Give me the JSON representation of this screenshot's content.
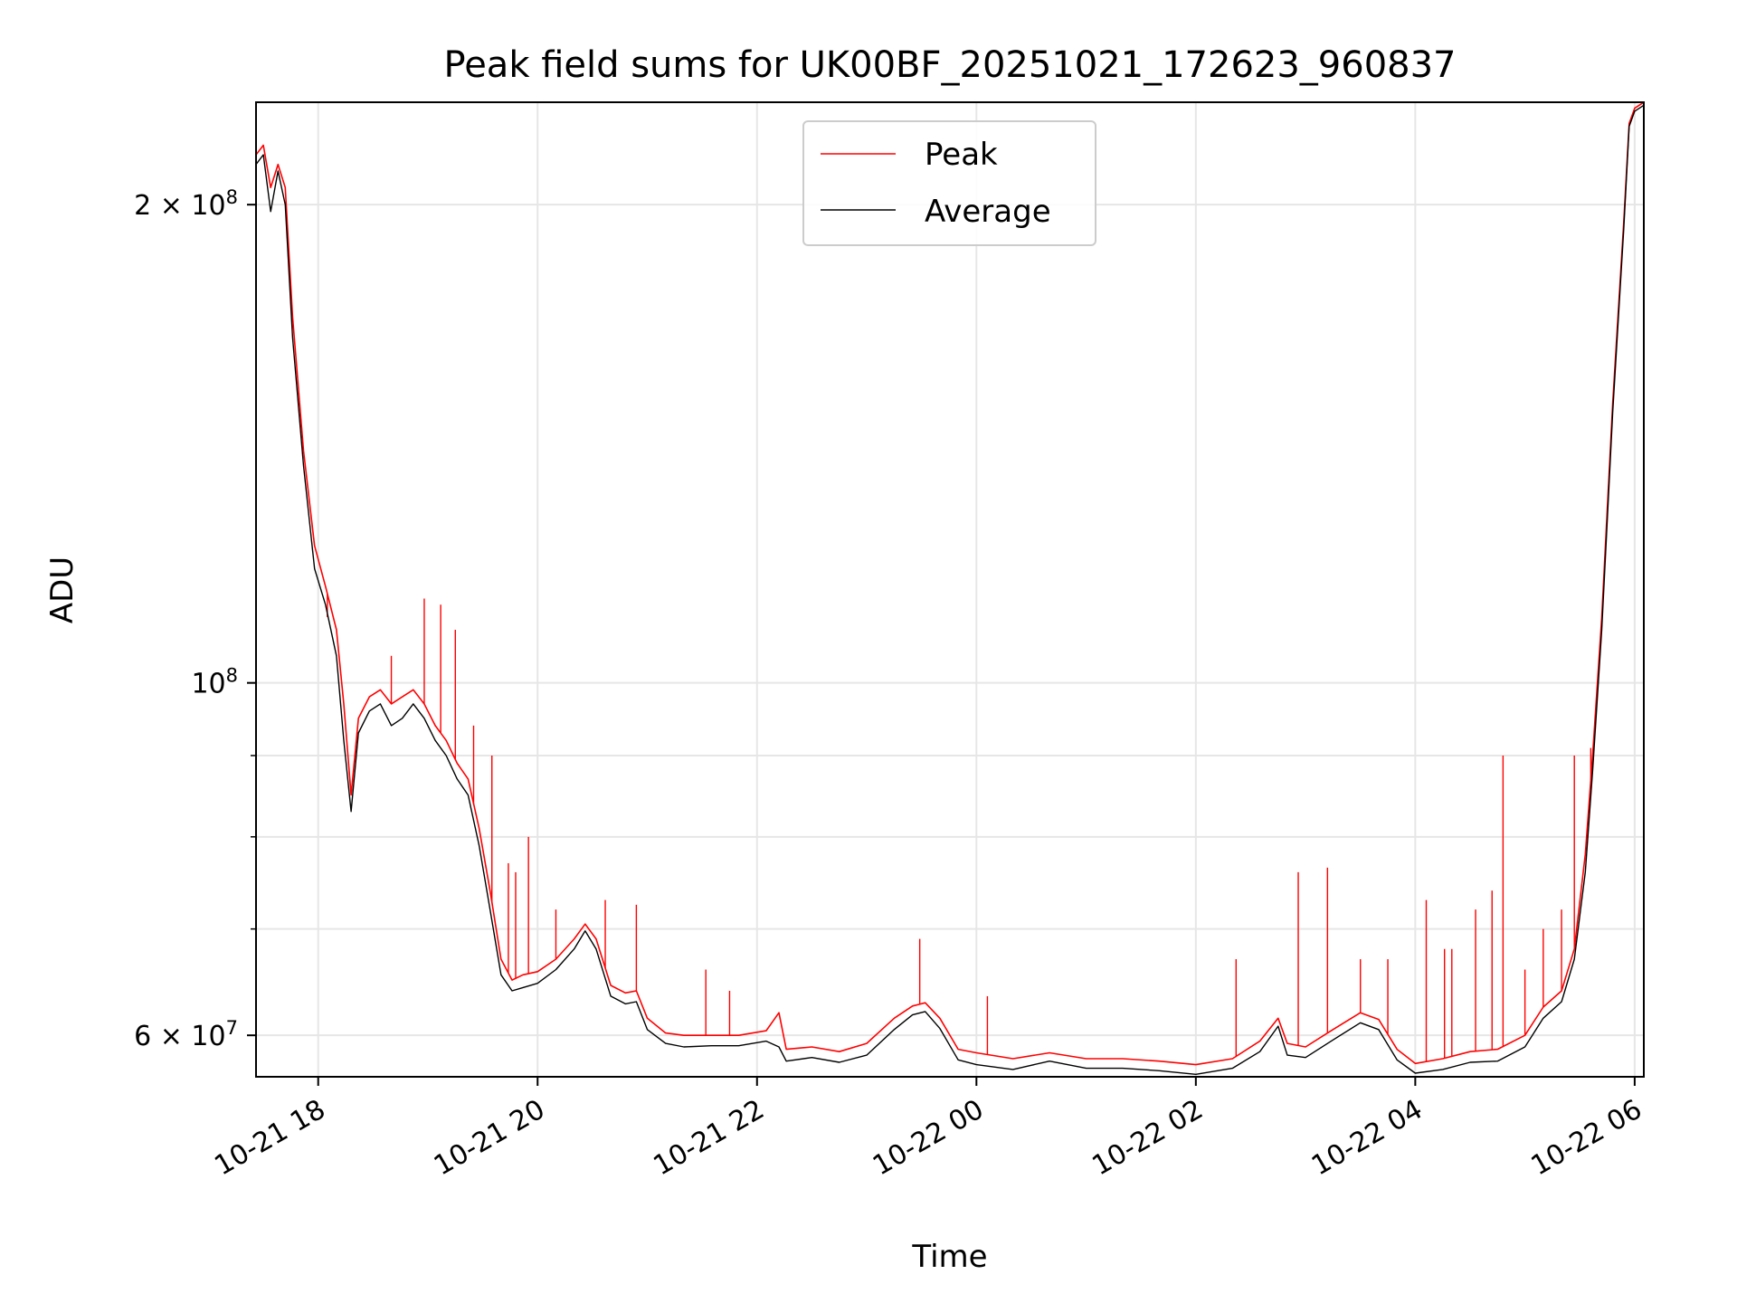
{
  "chart_data": {
    "type": "line",
    "title": "Peak field sums for UK00BF_20251021_172623_960837",
    "xlabel": "Time",
    "ylabel": "ADU",
    "yscale": "log",
    "ylim": [
      56500000,
      232000000
    ],
    "xlim": [
      "10-21 17:26",
      "10-22 06:05"
    ],
    "x_ticks": [
      "10-21 18",
      "10-21 20",
      "10-21 22",
      "10-22 00",
      "10-22 02",
      "10-22 04",
      "10-22 06"
    ],
    "y_ticks": [
      {
        "value": 60000000,
        "label": "6 × 10⁷",
        "mantissa": "6",
        "exponent": "7"
      },
      {
        "value": 100000000,
        "label": "10⁸",
        "mantissa": "",
        "exponent": "8"
      },
      {
        "value": 200000000,
        "label": "2 × 10⁸",
        "mantissa": "2",
        "exponent": "8"
      }
    ],
    "y_minor_ticks": [
      70000000,
      80000000,
      90000000
    ],
    "grid": true,
    "legend": {
      "placement": "top-center"
    },
    "series": [
      {
        "name": "Peak",
        "color": "#ff0000",
        "x": [
          "10-21 17:26",
          "10-21 17:30",
          "10-21 17:34",
          "10-21 17:38",
          "10-21 17:42",
          "10-21 17:46",
          "10-21 17:52",
          "10-21 17:58",
          "10-21 18:04",
          "10-21 18:10",
          "10-21 18:14",
          "10-21 18:18",
          "10-21 18:22",
          "10-21 18:28",
          "10-21 18:34",
          "10-21 18:40",
          "10-21 18:46",
          "10-21 18:52",
          "10-21 18:58",
          "10-21 19:04",
          "10-21 19:10",
          "10-21 19:16",
          "10-21 19:22",
          "10-21 19:28",
          "10-21 19:34",
          "10-21 19:40",
          "10-21 19:46",
          "10-21 19:52",
          "10-21 20:00",
          "10-21 20:10",
          "10-21 20:20",
          "10-21 20:26",
          "10-21 20:32",
          "10-21 20:40",
          "10-21 20:48",
          "10-21 20:54",
          "10-21 21:00",
          "10-21 21:10",
          "10-21 21:20",
          "10-21 21:35",
          "10-21 21:50",
          "10-21 22:05",
          "10-21 22:12",
          "10-21 22:16",
          "10-21 22:30",
          "10-21 22:45",
          "10-21 23:00",
          "10-21 23:15",
          "10-21 23:25",
          "10-21 23:32",
          "10-21 23:40",
          "10-21 23:50",
          "10-22 00:00",
          "10-22 00:20",
          "10-22 00:40",
          "10-22 01:00",
          "10-22 01:20",
          "10-22 01:40",
          "10-22 02:00",
          "10-22 02:20",
          "10-22 02:35",
          "10-22 02:45",
          "10-22 02:50",
          "10-22 03:00",
          "10-22 03:15",
          "10-22 03:30",
          "10-22 03:40",
          "10-22 03:50",
          "10-22 04:00",
          "10-22 04:15",
          "10-22 04:30",
          "10-22 04:45",
          "10-22 05:00",
          "10-22 05:10",
          "10-22 05:20",
          "10-22 05:27",
          "10-22 05:33",
          "10-22 05:37",
          "10-22 05:42",
          "10-22 05:48",
          "10-22 05:54",
          "10-22 05:57",
          "10-22 06:00",
          "10-22 06:05"
        ],
        "values": [
          215000000,
          218000000,
          205000000,
          212000000,
          205000000,
          170000000,
          140000000,
          122000000,
          115000000,
          108000000,
          97000000,
          85000000,
          95000000,
          98000000,
          99000000,
          97000000,
          98000000,
          99000000,
          97000000,
          94000000,
          92000000,
          89000000,
          87000000,
          81000000,
          74000000,
          67000000,
          65000000,
          65500000,
          65800000,
          67000000,
          69000000,
          70500000,
          69000000,
          64500000,
          63800000,
          64000000,
          61500000,
          60200000,
          60000000,
          60000000,
          60000000,
          60400000,
          62000000,
          58800000,
          59000000,
          58600000,
          59300000,
          61500000,
          62600000,
          62900000,
          61500000,
          58800000,
          58500000,
          58000000,
          58500000,
          58000000,
          58000000,
          57800000,
          57500000,
          58000000,
          59500000,
          61500000,
          59300000,
          59000000,
          60500000,
          62000000,
          61400000,
          58800000,
          57600000,
          58000000,
          58600000,
          58800000,
          60000000,
          62500000,
          64000000,
          68000000,
          78000000,
          90000000,
          110000000,
          150000000,
          195000000,
          225000000,
          230000000,
          232000000
        ],
        "spikes": [
          {
            "x": "10-21 18:05",
            "y": 110000000
          },
          {
            "x": "10-21 18:40",
            "y": 104000000
          },
          {
            "x": "10-21 18:58",
            "y": 113000000
          },
          {
            "x": "10-21 19:07",
            "y": 112000000
          },
          {
            "x": "10-21 19:15",
            "y": 108000000
          },
          {
            "x": "10-21 19:25",
            "y": 94000000
          },
          {
            "x": "10-21 19:35",
            "y": 90000000
          },
          {
            "x": "10-21 19:44",
            "y": 77000000
          },
          {
            "x": "10-21 19:48",
            "y": 76000000
          },
          {
            "x": "10-21 19:55",
            "y": 80000000
          },
          {
            "x": "10-21 20:10",
            "y": 72000000
          },
          {
            "x": "10-21 20:37",
            "y": 73000000
          },
          {
            "x": "10-21 20:54",
            "y": 72500000
          },
          {
            "x": "10-21 21:32",
            "y": 66000000
          },
          {
            "x": "10-21 21:45",
            "y": 64000000
          },
          {
            "x": "10-21 23:29",
            "y": 69000000
          },
          {
            "x": "10-22 00:06",
            "y": 63500000
          },
          {
            "x": "10-22 02:22",
            "y": 67000000
          },
          {
            "x": "10-22 02:56",
            "y": 76000000
          },
          {
            "x": "10-22 03:12",
            "y": 76500000
          },
          {
            "x": "10-22 03:30",
            "y": 67000000
          },
          {
            "x": "10-22 03:45",
            "y": 67000000
          },
          {
            "x": "10-22 04:06",
            "y": 73000000
          },
          {
            "x": "10-22 04:16",
            "y": 68000000
          },
          {
            "x": "10-22 04:20",
            "y": 68000000
          },
          {
            "x": "10-22 04:33",
            "y": 72000000
          },
          {
            "x": "10-22 04:42",
            "y": 74000000
          },
          {
            "x": "10-22 04:48",
            "y": 90000000
          },
          {
            "x": "10-22 05:00",
            "y": 66000000
          },
          {
            "x": "10-22 05:10",
            "y": 70000000
          },
          {
            "x": "10-22 05:20",
            "y": 72000000
          },
          {
            "x": "10-22 05:27",
            "y": 90000000
          },
          {
            "x": "10-22 05:36",
            "y": 91000000
          }
        ]
      },
      {
        "name": "Average",
        "color": "#000000",
        "x": [
          "10-21 17:26",
          "10-21 17:30",
          "10-21 17:34",
          "10-21 17:38",
          "10-21 17:42",
          "10-21 17:46",
          "10-21 17:52",
          "10-21 17:58",
          "10-21 18:04",
          "10-21 18:10",
          "10-21 18:14",
          "10-21 18:18",
          "10-21 18:22",
          "10-21 18:28",
          "10-21 18:34",
          "10-21 18:40",
          "10-21 18:46",
          "10-21 18:52",
          "10-21 18:58",
          "10-21 19:04",
          "10-21 19:10",
          "10-21 19:16",
          "10-21 19:22",
          "10-21 19:28",
          "10-21 19:34",
          "10-21 19:40",
          "10-21 19:46",
          "10-21 19:52",
          "10-21 20:00",
          "10-21 20:10",
          "10-21 20:20",
          "10-21 20:26",
          "10-21 20:32",
          "10-21 20:40",
          "10-21 20:48",
          "10-21 20:54",
          "10-21 21:00",
          "10-21 21:10",
          "10-21 21:20",
          "10-21 21:35",
          "10-21 21:50",
          "10-21 22:05",
          "10-21 22:12",
          "10-21 22:16",
          "10-21 22:30",
          "10-21 22:45",
          "10-21 23:00",
          "10-21 23:15",
          "10-21 23:25",
          "10-21 23:32",
          "10-21 23:40",
          "10-21 23:50",
          "10-22 00:00",
          "10-22 00:20",
          "10-22 00:40",
          "10-22 01:00",
          "10-22 01:20",
          "10-22 01:40",
          "10-22 02:00",
          "10-22 02:20",
          "10-22 02:35",
          "10-22 02:45",
          "10-22 02:50",
          "10-22 03:00",
          "10-22 03:15",
          "10-22 03:30",
          "10-22 03:40",
          "10-22 03:50",
          "10-22 04:00",
          "10-22 04:15",
          "10-22 04:30",
          "10-22 04:45",
          "10-22 05:00",
          "10-22 05:10",
          "10-22 05:20",
          "10-22 05:27",
          "10-22 05:33",
          "10-22 05:37",
          "10-22 05:42",
          "10-22 05:48",
          "10-22 05:54",
          "10-22 05:57",
          "10-22 06:00",
          "10-22 06:05"
        ],
        "values": [
          212000000,
          215000000,
          198000000,
          210000000,
          200000000,
          165000000,
          137000000,
          118000000,
          112000000,
          104000000,
          92000000,
          83000000,
          93000000,
          96000000,
          97000000,
          94000000,
          95000000,
          97000000,
          95000000,
          92000000,
          90000000,
          87000000,
          85000000,
          79000000,
          72000000,
          65500000,
          64000000,
          64300000,
          64700000,
          66000000,
          68000000,
          69800000,
          68000000,
          63500000,
          62800000,
          63000000,
          60500000,
          59300000,
          59000000,
          59100000,
          59100000,
          59500000,
          59000000,
          57800000,
          58100000,
          57700000,
          58300000,
          60500000,
          61800000,
          62100000,
          60600000,
          57900000,
          57500000,
          57100000,
          57800000,
          57200000,
          57200000,
          57000000,
          56700000,
          57200000,
          58600000,
          60800000,
          58300000,
          58100000,
          59600000,
          61100000,
          60500000,
          57900000,
          56800000,
          57100000,
          57700000,
          57800000,
          59000000,
          61500000,
          63000000,
          67000000,
          76000000,
          88000000,
          108000000,
          148000000,
          193000000,
          224000000,
          229000000,
          231000000
        ]
      }
    ]
  }
}
